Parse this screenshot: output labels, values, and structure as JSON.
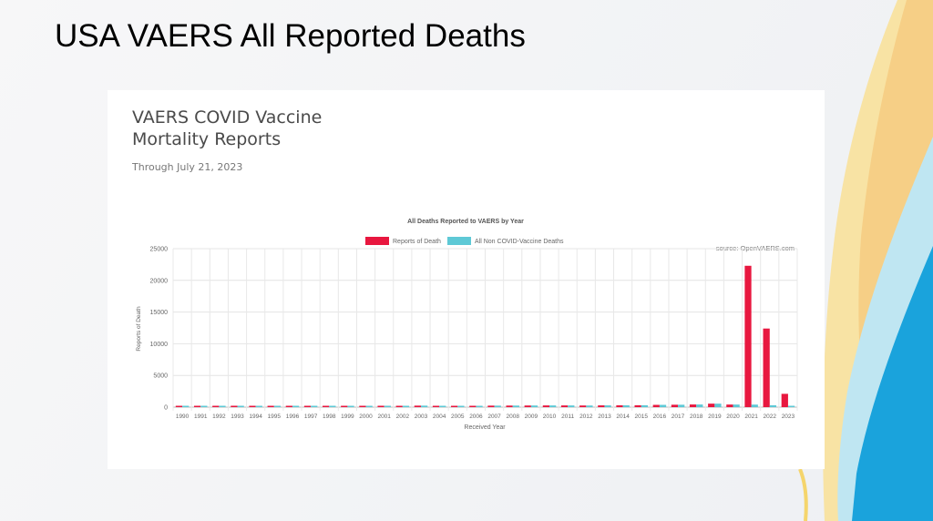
{
  "slide": {
    "title": "USA VAERS All Reported Deaths"
  },
  "card": {
    "title_line1": "VAERS COVID Vaccine",
    "title_line2": "Mortality Reports",
    "subtitle": "Through July 21, 2023"
  },
  "chart_data": {
    "type": "bar",
    "title": "All Deaths Reported to VAERS by Year",
    "xlabel": "Received Year",
    "ylabel": "Reports of Death",
    "annotation": "source: OpenVAERS.com",
    "ylim": [
      0,
      25000
    ],
    "yticks": [
      0,
      5000,
      10000,
      15000,
      20000,
      25000
    ],
    "grid": true,
    "legend_position": "top",
    "categories": [
      "1990",
      "1991",
      "1992",
      "1993",
      "1994",
      "1995",
      "1996",
      "1997",
      "1998",
      "1999",
      "2000",
      "2001",
      "2002",
      "2003",
      "2004",
      "2005",
      "2006",
      "2007",
      "2008",
      "2009",
      "2010",
      "2011",
      "2012",
      "2013",
      "2014",
      "2015",
      "2016",
      "2017",
      "2018",
      "2019",
      "2020",
      "2021",
      "2022",
      "2023"
    ],
    "series": [
      {
        "name": "Reports of Death",
        "color": "#e8173f",
        "values": [
          40,
          150,
          190,
          220,
          210,
          160,
          170,
          180,
          190,
          210,
          200,
          220,
          210,
          240,
          200,
          190,
          190,
          240,
          250,
          260,
          270,
          270,
          260,
          280,
          290,
          300,
          360,
          380,
          420,
          550,
          410,
          22300,
          12400,
          2100
        ]
      },
      {
        "name": "All Non COVID-Vaccine Deaths",
        "color": "#5ec9d6",
        "values": [
          40,
          150,
          190,
          220,
          210,
          160,
          170,
          180,
          190,
          210,
          200,
          220,
          210,
          240,
          200,
          190,
          190,
          240,
          250,
          260,
          270,
          270,
          260,
          280,
          290,
          300,
          360,
          380,
          420,
          550,
          410,
          400,
          300,
          110
        ]
      }
    ]
  }
}
